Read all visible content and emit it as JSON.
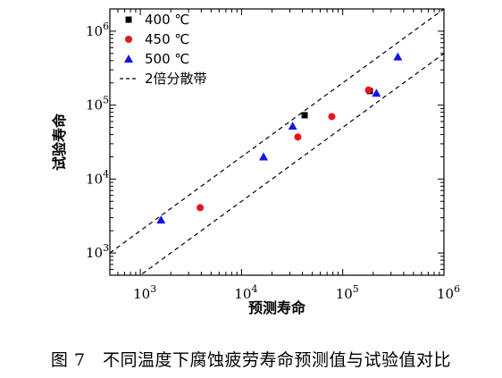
{
  "chart_data": {
    "type": "scatter",
    "xscale": "log",
    "yscale": "log",
    "xlim": [
      500,
      1000000
    ],
    "ylim": [
      500,
      2000000
    ],
    "xlabel": "预测寿命",
    "ylabel": "试验寿命",
    "xticks": [
      {
        "value": 1000,
        "base": "10",
        "exp": "3"
      },
      {
        "value": 10000,
        "base": "10",
        "exp": "4"
      },
      {
        "value": 100000,
        "base": "10",
        "exp": "5"
      },
      {
        "value": 1000000,
        "base": "10",
        "exp": "6"
      }
    ],
    "yticks": [
      {
        "value": 1000,
        "base": "10",
        "exp": "3"
      },
      {
        "value": 10000,
        "base": "10",
        "exp": "4"
      },
      {
        "value": 100000,
        "base": "10",
        "exp": "5"
      },
      {
        "value": 1000000,
        "base": "10",
        "exp": "6"
      }
    ],
    "grid": false,
    "legend_position": "top-left",
    "series": [
      {
        "name": "400 ℃",
        "marker": "square",
        "color": "#000000",
        "points": [
          [
            42000,
            73000
          ],
          [
            185000,
            155000
          ]
        ]
      },
      {
        "name": "450 ℃",
        "marker": "circle",
        "color": "#e8141c",
        "points": [
          [
            3900,
            4100
          ],
          [
            36000,
            37000
          ],
          [
            78000,
            70000
          ],
          [
            180000,
            160000
          ]
        ]
      },
      {
        "name": "500 ℃",
        "marker": "triangle",
        "color": "#1414e6",
        "points": [
          [
            1600,
            2800
          ],
          [
            16500,
            20000
          ],
          [
            32000,
            52000
          ],
          [
            215000,
            145000
          ],
          [
            350000,
            450000
          ]
        ]
      }
    ],
    "scatter_band": {
      "name": "2倍分散带",
      "factor": 2,
      "style": "dashed",
      "color": "#000000"
    }
  },
  "caption": "图 7　不同温度下腐蚀疲劳寿命预测值与试验值对比"
}
